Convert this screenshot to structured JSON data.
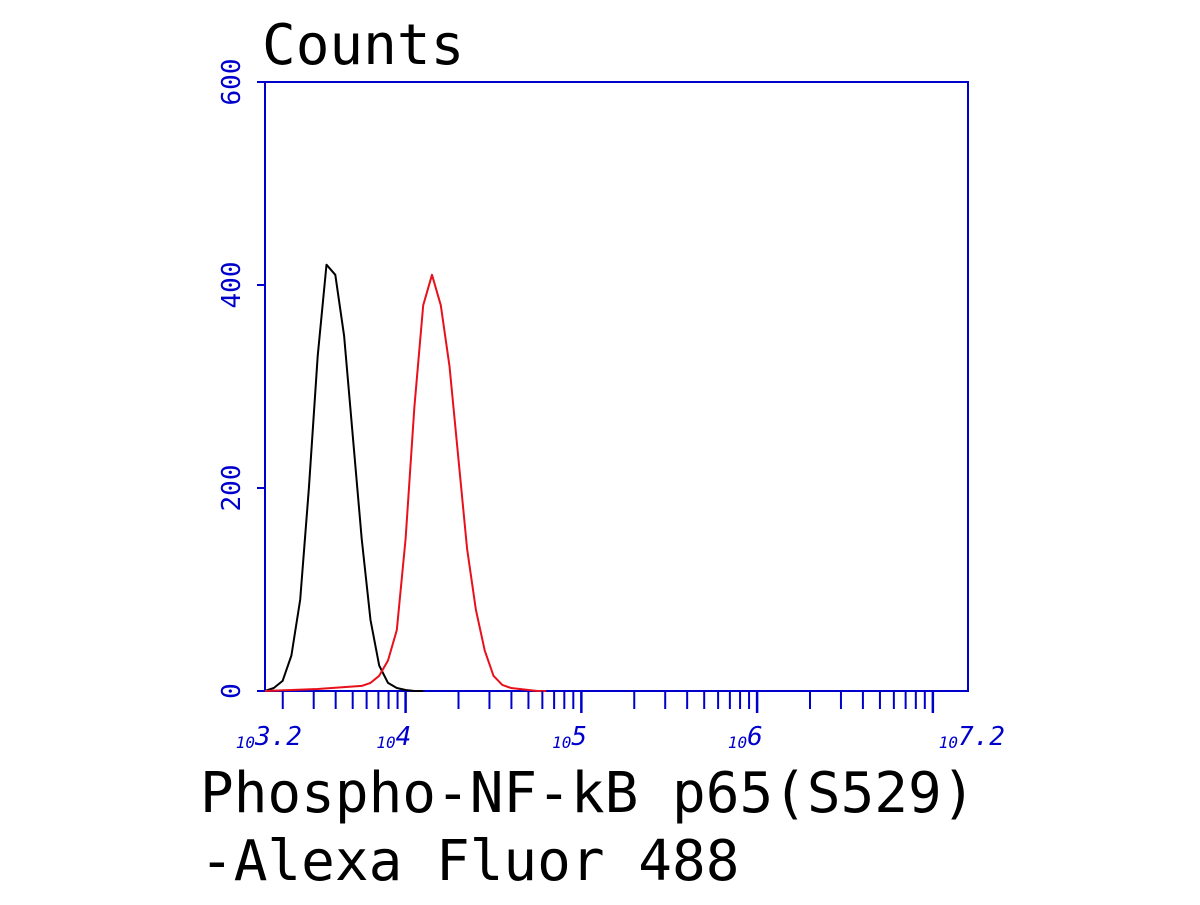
{
  "chart_data": {
    "type": "line",
    "title": "",
    "ylabel": "Counts",
    "xlabel_lines": [
      "Phospho-NF-kB p65(S529)",
      "-Alexa Fluor 488"
    ],
    "x_scale": "log10",
    "xlim": [
      1584.89,
      15848932
    ],
    "ylim": [
      0,
      600
    ],
    "y_ticks": [
      0,
      200,
      400,
      600
    ],
    "y_tick_labels": [
      "0",
      "200",
      "400",
      "600"
    ],
    "x_ticks": [
      1584.89,
      10000,
      100000,
      1000000,
      15848932
    ],
    "x_tick_labels": [
      {
        "base": "10",
        "exp": "3.2"
      },
      {
        "base": "10",
        "exp": "4"
      },
      {
        "base": "10",
        "exp": "5"
      },
      {
        "base": "10",
        "exp": "6"
      },
      {
        "base": "10",
        "exp": "7.2"
      }
    ],
    "grid": false,
    "legend": "none",
    "axis_color": "#0000cc",
    "series": [
      {
        "color": "#000000",
        "x": [
          1584.89,
          1778,
          1995,
          2239,
          2512,
          2818,
          3162,
          3548,
          3981,
          4467,
          5012,
          5623,
          6310,
          7079,
          7943,
          8913,
          10000,
          11220,
          12589
        ],
        "y": [
          0,
          3,
          10,
          35,
          90,
          200,
          330,
          420,
          410,
          350,
          250,
          150,
          70,
          25,
          8,
          3,
          1,
          0,
          0
        ]
      },
      {
        "color": "#e8101a",
        "x": [
          1584.89,
          3162,
          5623,
          6310,
          7079,
          7943,
          8913,
          10000,
          11220,
          12589,
          14125,
          15849,
          17783,
          19953,
          22387,
          25119,
          28184,
          31623,
          35481,
          39811,
          44668,
          50119,
          56234,
          63096
        ],
        "y": [
          0,
          2,
          5,
          8,
          15,
          30,
          60,
          150,
          280,
          380,
          410,
          380,
          320,
          230,
          140,
          80,
          40,
          15,
          6,
          3,
          2,
          1,
          0,
          0
        ]
      }
    ]
  }
}
